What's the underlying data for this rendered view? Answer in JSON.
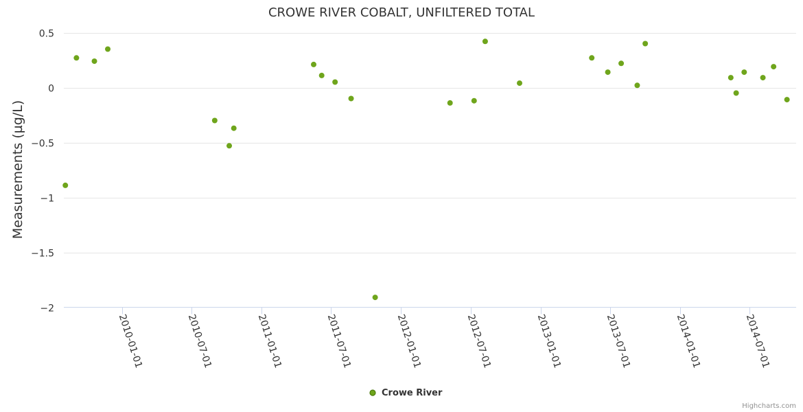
{
  "chart_data": {
    "type": "scatter",
    "title": "CROWE RIVER COBALT, UNFILTERED TOTAL",
    "xlabel": "",
    "ylabel": "Measurements (µg/L)",
    "xlim": [
      "2009-08-01",
      "2014-10-31"
    ],
    "ylim": [
      -2,
      0.5
    ],
    "y_ticks": [
      0.5,
      0,
      -0.5,
      -1,
      -1.5,
      -2
    ],
    "y_tick_labels": [
      "0.5",
      "0",
      "−0.5",
      "−1",
      "−1.5",
      "−2"
    ],
    "x_ticks": [
      "2010-01-01",
      "2010-07-01",
      "2011-01-01",
      "2011-07-01",
      "2012-01-01",
      "2012-07-01",
      "2013-01-01",
      "2013-07-01",
      "2014-01-01",
      "2014-07-01"
    ],
    "x_tick_labels": [
      "2010-01-01",
      "2010-07-01",
      "2011-01-01",
      "2011-07-01",
      "2012-01-01",
      "2012-07-01",
      "2013-01-01",
      "2013-07-01",
      "2014-01-01",
      "2014-07-01"
    ],
    "grid": true,
    "legend_position": "bottom-center",
    "series": [
      {
        "name": "Crowe River",
        "color": "#6fa51c",
        "border_color": "#4a7a0a",
        "points": [
          {
            "x": "2009-08-05",
            "y": -0.89
          },
          {
            "x": "2009-09-03",
            "y": 0.27
          },
          {
            "x": "2009-10-20",
            "y": 0.24
          },
          {
            "x": "2009-11-24",
            "y": 0.35
          },
          {
            "x": "2010-08-31",
            "y": -0.3
          },
          {
            "x": "2010-10-08",
            "y": -0.53
          },
          {
            "x": "2010-10-20",
            "y": -0.37
          },
          {
            "x": "2011-05-17",
            "y": 0.21
          },
          {
            "x": "2011-06-07",
            "y": 0.11
          },
          {
            "x": "2011-07-12",
            "y": 0.05
          },
          {
            "x": "2011-08-23",
            "y": -0.1
          },
          {
            "x": "2011-10-25",
            "y": -1.91
          },
          {
            "x": "2012-05-08",
            "y": -0.14
          },
          {
            "x": "2012-07-10",
            "y": -0.12
          },
          {
            "x": "2012-08-08",
            "y": 0.42
          },
          {
            "x": "2012-11-06",
            "y": 0.04
          },
          {
            "x": "2013-05-14",
            "y": 0.27
          },
          {
            "x": "2013-06-25",
            "y": 0.14
          },
          {
            "x": "2013-07-30",
            "y": 0.22
          },
          {
            "x": "2013-09-10",
            "y": 0.02
          },
          {
            "x": "2013-10-01",
            "y": 0.4
          },
          {
            "x": "2014-05-13",
            "y": 0.09
          },
          {
            "x": "2014-05-27",
            "y": -0.05
          },
          {
            "x": "2014-06-17",
            "y": 0.14
          },
          {
            "x": "2014-08-05",
            "y": 0.09
          },
          {
            "x": "2014-09-02",
            "y": 0.19
          },
          {
            "x": "2014-10-07",
            "y": -0.11
          }
        ]
      }
    ],
    "credits": "Highcharts.com"
  }
}
